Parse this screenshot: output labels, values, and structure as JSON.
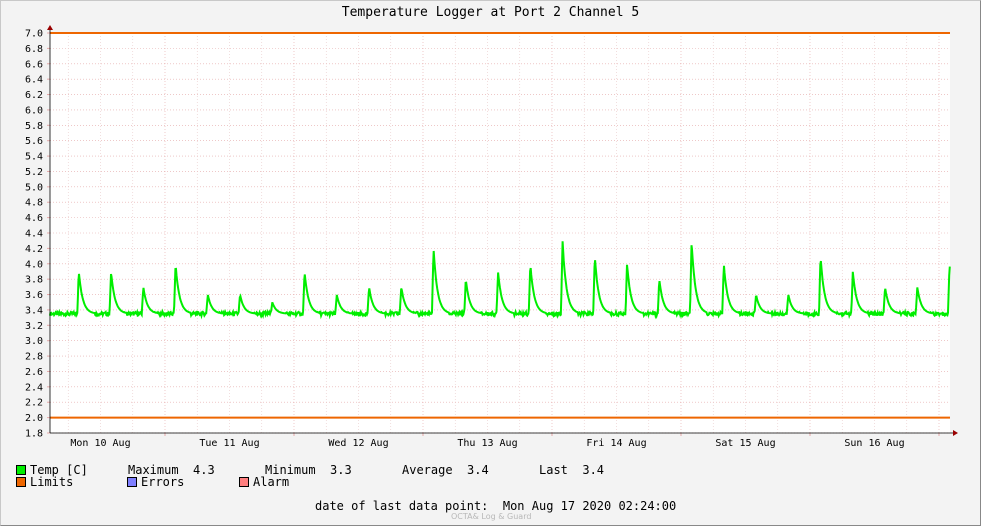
{
  "chart_data": {
    "type": "line",
    "title": "Temperature Logger at Port 2 Channel 5",
    "xlabel": "",
    "ylabel": "",
    "ylim": [
      1.8,
      7.0
    ],
    "yticks": [
      "1.8",
      "2.0",
      "2.2",
      "2.4",
      "2.6",
      "2.8",
      "3.0",
      "3.2",
      "3.4",
      "3.6",
      "3.8",
      "4.0",
      "4.2",
      "4.4",
      "4.6",
      "4.8",
      "5.0",
      "5.2",
      "5.4",
      "5.6",
      "5.8",
      "6.0",
      "6.2",
      "6.4",
      "6.6",
      "6.8",
      "7.0"
    ],
    "xticks": [
      "Mon 10 Aug",
      "Tue 11 Aug",
      "Wed 12 Aug",
      "Thu 13 Aug",
      "Fri 14 Aug",
      "Sat 15 Aug",
      "Sun 16 Aug"
    ],
    "grid": true,
    "series": [
      {
        "name": "Temp [C]",
        "color": "#00ee00",
        "baseline": 3.35,
        "peaks": [
          {
            "day": 0.2,
            "value": 3.9
          },
          {
            "day": 0.45,
            "value": 3.9
          },
          {
            "day": 0.7,
            "value": 3.7
          },
          {
            "day": 0.95,
            "value": 4.0
          },
          {
            "day": 1.2,
            "value": 3.6
          },
          {
            "day": 1.45,
            "value": 3.6
          },
          {
            "day": 1.7,
            "value": 3.5
          },
          {
            "day": 1.95,
            "value": 3.9
          },
          {
            "day": 2.2,
            "value": 3.6
          },
          {
            "day": 2.45,
            "value": 3.7
          },
          {
            "day": 2.7,
            "value": 3.7
          },
          {
            "day": 2.95,
            "value": 4.2
          },
          {
            "day": 3.2,
            "value": 3.8
          },
          {
            "day": 3.45,
            "value": 3.9
          },
          {
            "day": 3.7,
            "value": 4.0
          },
          {
            "day": 3.95,
            "value": 4.3
          },
          {
            "day": 4.2,
            "value": 4.1
          },
          {
            "day": 4.45,
            "value": 4.0
          },
          {
            "day": 4.7,
            "value": 3.8
          },
          {
            "day": 4.95,
            "value": 4.3
          },
          {
            "day": 5.2,
            "value": 4.0
          },
          {
            "day": 5.45,
            "value": 3.6
          },
          {
            "day": 5.7,
            "value": 3.6
          },
          {
            "day": 5.95,
            "value": 4.1
          },
          {
            "day": 6.2,
            "value": 3.9
          },
          {
            "day": 6.45,
            "value": 3.7
          },
          {
            "day": 6.7,
            "value": 3.7
          },
          {
            "day": 6.95,
            "value": 4.0
          }
        ]
      },
      {
        "name": "Limits",
        "color": "#ee6600",
        "values": [
          2.0,
          7.0
        ]
      }
    ]
  },
  "legend": {
    "temp_label": "Temp [C]",
    "limits_label": "Limits",
    "errors_label": "Errors",
    "alarm_label": "Alarm",
    "temp_color": "#00ee00",
    "limits_color": "#ee6600",
    "errors_color": "#7f7fff",
    "alarm_color": "#ff7f7f"
  },
  "stats": {
    "maximum_label": "Maximum",
    "maximum_value": "4.3",
    "minimum_label": "Minimum",
    "minimum_value": "3.3",
    "average_label": "Average",
    "average_value": "3.4",
    "last_label": "Last",
    "last_value": "3.4"
  },
  "footer": {
    "last_data_label": "date of last data point:",
    "last_data_value": "Mon Aug 17 2020 02:24:00",
    "credit": "OCTA& Log & Guard"
  }
}
